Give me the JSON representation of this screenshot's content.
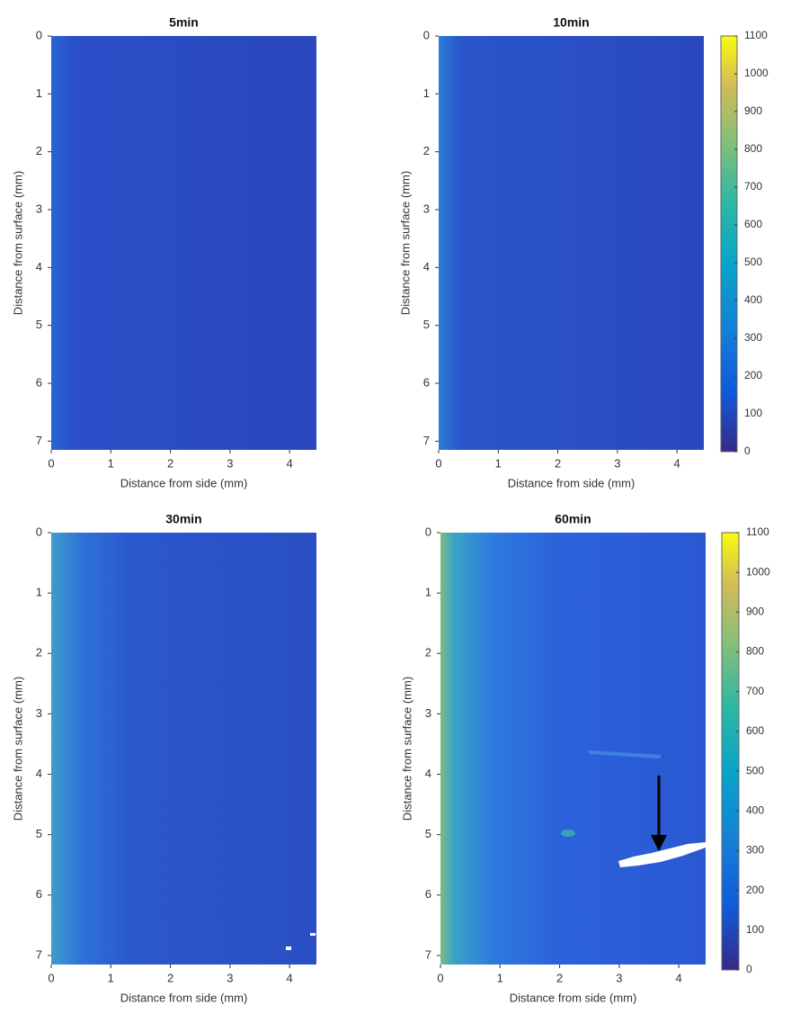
{
  "chart_data": [
    {
      "type": "heatmap",
      "title": "5min",
      "xlabel": "Distance from side (mm)",
      "ylabel": "Distance from surface (mm)",
      "xlim": [
        0,
        4.45
      ],
      "ylim": [
        0,
        7.15
      ],
      "y_reversed": true,
      "xticks": [
        0,
        1,
        2,
        3,
        4
      ],
      "yticks": [
        0,
        1,
        2,
        3,
        4,
        5,
        6,
        7
      ],
      "colormap": "parula"
    },
    {
      "type": "heatmap",
      "title": "10min",
      "xlabel": "Distance from side (mm)",
      "ylabel": "Distance from surface (mm)",
      "xlim": [
        0,
        4.45
      ],
      "ylim": [
        0,
        7.15
      ],
      "y_reversed": true,
      "xticks": [
        0,
        1,
        2,
        3,
        4
      ],
      "yticks": [
        0,
        1,
        2,
        3,
        4,
        5,
        6,
        7
      ],
      "colormap": "parula",
      "colorbar": {
        "clim": [
          0,
          1100
        ],
        "ticks": [
          0,
          100,
          200,
          300,
          400,
          500,
          600,
          700,
          800,
          900,
          1000,
          1100
        ]
      }
    },
    {
      "type": "heatmap",
      "title": "30min",
      "xlabel": "Distance from side (mm)",
      "ylabel": "Distance from surface (mm)",
      "xlim": [
        0,
        4.45
      ],
      "ylim": [
        0,
        7.15
      ],
      "y_reversed": true,
      "xticks": [
        0,
        1,
        2,
        3,
        4
      ],
      "yticks": [
        0,
        1,
        2,
        3,
        4,
        5,
        6,
        7
      ],
      "colormap": "parula"
    },
    {
      "type": "heatmap",
      "title": "60min",
      "xlabel": "Distance from side (mm)",
      "ylabel": "Distance from surface (mm)",
      "xlim": [
        0,
        4.45
      ],
      "ylim": [
        0,
        7.15
      ],
      "y_reversed": true,
      "xticks": [
        0,
        1,
        2,
        3,
        4
      ],
      "yticks": [
        0,
        1,
        2,
        3,
        4,
        5,
        6,
        7
      ],
      "colormap": "parula",
      "colorbar": {
        "clim": [
          0,
          1100
        ],
        "ticks": [
          0,
          100,
          200,
          300,
          400,
          500,
          600,
          700,
          800,
          900,
          1000,
          1100
        ]
      }
    }
  ]
}
